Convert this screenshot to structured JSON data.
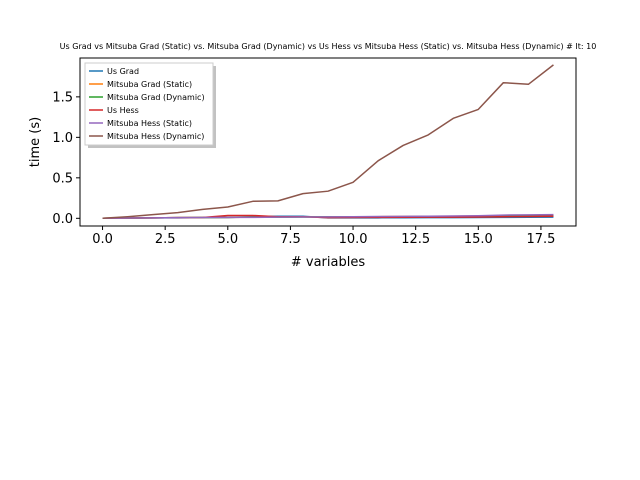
{
  "chart_data": {
    "type": "line",
    "title": "Us Grad vs Mitsuba Grad (Static) vs. Mitsuba Grad (Dynamic) vs Us Hess vs Mitsuba Hess (Static) vs. Mitsuba Hess (Dynamic) # It: 10",
    "xlabel": "# variables",
    "ylabel": "time (s)",
    "xlim": [
      -0.9,
      18.9
    ],
    "ylim": [
      -0.095,
      1.98
    ],
    "xticks": [
      0.0,
      2.5,
      5.0,
      7.5,
      10.0,
      12.5,
      15.0,
      17.5
    ],
    "xtick_labels": [
      "0.0",
      "2.5",
      "5.0",
      "7.5",
      "10.0",
      "12.5",
      "15.0",
      "17.5"
    ],
    "yticks": [
      0.0,
      0.5,
      1.0,
      1.5
    ],
    "ytick_labels": [
      "0.0",
      "0.5",
      "1.0",
      "1.5"
    ],
    "grid": false,
    "legend_position": "top-left",
    "x": [
      0,
      1,
      2,
      3,
      4,
      5,
      6,
      7,
      8,
      9,
      10,
      11,
      12,
      13,
      14,
      15,
      16,
      17,
      18
    ],
    "series": [
      {
        "name": "Us Grad",
        "color": "#1f77b4",
        "values": [
          0.0,
          0.003,
          0.005,
          0.006,
          0.008,
          0.01,
          0.02,
          0.025,
          0.025,
          0.005,
          0.005,
          0.006,
          0.007,
          0.008,
          0.009,
          0.01,
          0.012,
          0.013,
          0.014
        ]
      },
      {
        "name": "Mitsuba Grad (Static)",
        "color": "#ff7f0e",
        "values": [
          0.0,
          0.004,
          0.006,
          0.008,
          0.01,
          0.012,
          0.014,
          0.015,
          0.017,
          0.018,
          0.019,
          0.02,
          0.022,
          0.024,
          0.026,
          0.028,
          0.03,
          0.032,
          0.034
        ]
      },
      {
        "name": "Mitsuba Grad (Dynamic)",
        "color": "#2ca02c",
        "values": [
          0.0,
          0.004,
          0.006,
          0.008,
          0.01,
          0.012,
          0.014,
          0.015,
          0.016,
          0.017,
          0.018,
          0.019,
          0.02,
          0.022,
          0.024,
          0.026,
          0.028,
          0.03,
          0.032
        ]
      },
      {
        "name": "Us Hess",
        "color": "#d62728",
        "values": [
          0.0,
          0.004,
          0.006,
          0.008,
          0.01,
          0.035,
          0.035,
          0.02,
          0.02,
          0.008,
          0.01,
          0.012,
          0.013,
          0.014,
          0.015,
          0.016,
          0.02,
          0.022,
          0.025
        ]
      },
      {
        "name": "Mitsuba Hess (Static)",
        "color": "#9467bd",
        "values": [
          0.0,
          0.004,
          0.006,
          0.008,
          0.01,
          0.012,
          0.012,
          0.014,
          0.016,
          0.018,
          0.02,
          0.022,
          0.024,
          0.026,
          0.028,
          0.032,
          0.04,
          0.042,
          0.045
        ]
      },
      {
        "name": "Mitsuba Hess (Dynamic)",
        "color": "#8c564b",
        "values": [
          0.0,
          0.02,
          0.045,
          0.07,
          0.11,
          0.14,
          0.21,
          0.215,
          0.305,
          0.335,
          0.445,
          0.71,
          0.9,
          1.03,
          1.235,
          1.345,
          1.675,
          1.655,
          1.895
        ]
      }
    ]
  }
}
